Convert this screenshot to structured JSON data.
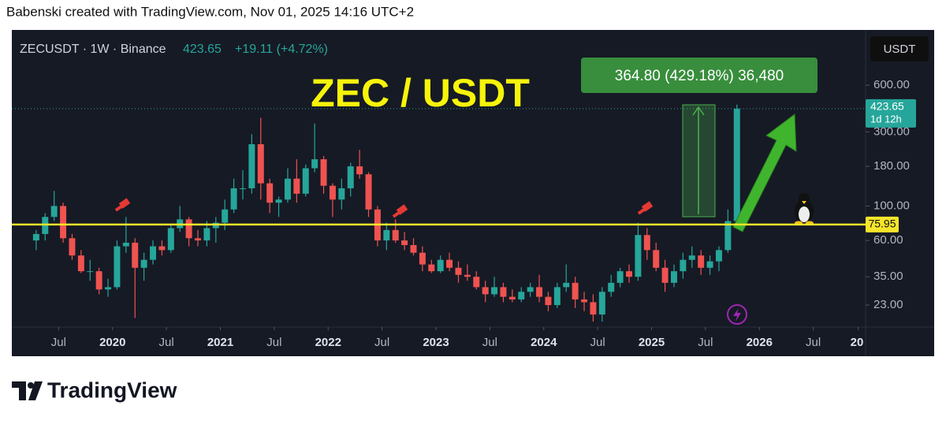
{
  "header": {
    "credit": "Babenski created with TradingView.com, Nov 01, 2025 14:16 UTC+2"
  },
  "footer": {
    "brand": "TradingView"
  },
  "chart_data": {
    "type": "candlestick",
    "title": "ZEC / USDT",
    "legend": {
      "symbol": "ZECUSDT · 1W · Binance",
      "price": "423.65",
      "change": "+19.11 (+4.72%)"
    },
    "currency_button": "USDT",
    "measure_label": "364.80 (429.18%) 36,480",
    "last_price": 423.65,
    "countdown": "1d 12h",
    "hline": 75.95,
    "log_scale": true,
    "grid": false,
    "up_color": "#26a69a",
    "down_color": "#ef5350",
    "hline_color": "#f5e52a",
    "xlim": [
      "2019-01",
      "2027-01"
    ],
    "xticks": [
      {
        "value": "2019-07",
        "label": "Jul"
      },
      {
        "value": "2020-01",
        "label": "2020"
      },
      {
        "value": "2020-07",
        "label": "Jul"
      },
      {
        "value": "2021-01",
        "label": "2021"
      },
      {
        "value": "2021-07",
        "label": "Jul"
      },
      {
        "value": "2022-01",
        "label": "2022"
      },
      {
        "value": "2022-07",
        "label": "Jul"
      },
      {
        "value": "2023-01",
        "label": "2023"
      },
      {
        "value": "2023-07",
        "label": "Jul"
      },
      {
        "value": "2024-01",
        "label": "2024"
      },
      {
        "value": "2024-07",
        "label": "Jul"
      },
      {
        "value": "2025-01",
        "label": "2025"
      },
      {
        "value": "2025-07",
        "label": "Jul"
      },
      {
        "value": "2026-01",
        "label": "2026"
      },
      {
        "value": "2026-07",
        "label": "Jul"
      },
      {
        "value": "2026-12",
        "label": "20"
      }
    ],
    "ylim": [
      16.6,
      1330
    ],
    "yticks": [
      {
        "value": 600,
        "label": "600.00"
      },
      {
        "value": 300,
        "label": "300.00"
      },
      {
        "value": 180,
        "label": "180.00"
      },
      {
        "value": 100,
        "label": "100.00"
      },
      {
        "value": 60,
        "label": "60.00"
      },
      {
        "value": 35,
        "label": "35.00"
      },
      {
        "value": 23,
        "label": "23.00"
      }
    ],
    "x": [
      "2019-04",
      "2019-05",
      "2019-06",
      "2019-07",
      "2019-08",
      "2019-09",
      "2019-10",
      "2019-11",
      "2019-12",
      "2020-01",
      "2020-02",
      "2020-03",
      "2020-04",
      "2020-05",
      "2020-06",
      "2020-07",
      "2020-08",
      "2020-09",
      "2020-10",
      "2020-11",
      "2020-12",
      "2021-01",
      "2021-02",
      "2021-03",
      "2021-04",
      "2021-05",
      "2021-06",
      "2021-07",
      "2021-08",
      "2021-09",
      "2021-10",
      "2021-11",
      "2021-12",
      "2022-01",
      "2022-02",
      "2022-03",
      "2022-04",
      "2022-05",
      "2022-06",
      "2022-07",
      "2022-08",
      "2022-09",
      "2022-10",
      "2022-11",
      "2022-12",
      "2023-01",
      "2023-02",
      "2023-03",
      "2023-04",
      "2023-05",
      "2023-06",
      "2023-07",
      "2023-08",
      "2023-09",
      "2023-10",
      "2023-11",
      "2023-12",
      "2024-01",
      "2024-02",
      "2024-03",
      "2024-04",
      "2024-05",
      "2024-06",
      "2024-07",
      "2024-08",
      "2024-09",
      "2024-10",
      "2024-11",
      "2024-12",
      "2025-01",
      "2025-02",
      "2025-03",
      "2025-04",
      "2025-05",
      "2025-06",
      "2025-07",
      "2025-08",
      "2025-09",
      "2025-10"
    ],
    "open": [
      60,
      66,
      85,
      100,
      62,
      48,
      38,
      38,
      29,
      30,
      55,
      58,
      40,
      45,
      55,
      52,
      72,
      82,
      62,
      60,
      72,
      78,
      95,
      130,
      130,
      250,
      140,
      105,
      110,
      150,
      120,
      175,
      200,
      135,
      110,
      130,
      180,
      160,
      95,
      60,
      70,
      60,
      56,
      50,
      42,
      38,
      45,
      40,
      36,
      35,
      30,
      27,
      30,
      26,
      25,
      28,
      30,
      26,
      23,
      30,
      32,
      25,
      24,
      20,
      28,
      32,
      38,
      35,
      65,
      52,
      40,
      32,
      38,
      45,
      48,
      40,
      44,
      52,
      80
    ],
    "high": [
      70,
      90,
      125,
      105,
      66,
      52,
      45,
      40,
      34,
      60,
      85,
      62,
      50,
      60,
      60,
      75,
      100,
      85,
      70,
      80,
      85,
      110,
      150,
      170,
      290,
      370,
      150,
      115,
      175,
      200,
      185,
      340,
      210,
      140,
      150,
      190,
      230,
      165,
      100,
      78,
      82,
      68,
      62,
      55,
      45,
      48,
      50,
      44,
      42,
      38,
      33,
      35,
      32,
      29,
      30,
      32,
      36,
      28,
      32,
      42,
      35,
      28,
      27,
      30,
      36,
      40,
      42,
      78,
      72,
      58,
      45,
      42,
      50,
      55,
      52,
      48,
      55,
      95,
      450
    ],
    "low": [
      52,
      60,
      80,
      58,
      45,
      37,
      33,
      27,
      26,
      29,
      50,
      19,
      33,
      42,
      48,
      50,
      68,
      55,
      55,
      55,
      58,
      70,
      90,
      110,
      120,
      110,
      90,
      85,
      105,
      105,
      115,
      165,
      120,
      85,
      95,
      115,
      150,
      85,
      55,
      52,
      58,
      52,
      48,
      38,
      37,
      37,
      38,
      32,
      33,
      29,
      24,
      26,
      24,
      24,
      24,
      26,
      24,
      21,
      22,
      28,
      22,
      21,
      18,
      18,
      26,
      30,
      32,
      33,
      45,
      38,
      28,
      30,
      34,
      40,
      36,
      36,
      38,
      50,
      78
    ],
    "close": [
      66,
      85,
      100,
      62,
      48,
      38,
      38,
      29,
      30,
      55,
      58,
      40,
      45,
      55,
      52,
      72,
      82,
      62,
      60,
      72,
      78,
      95,
      130,
      130,
      250,
      140,
      105,
      110,
      150,
      120,
      175,
      200,
      135,
      110,
      130,
      180,
      160,
      95,
      60,
      70,
      60,
      56,
      50,
      42,
      38,
      45,
      40,
      36,
      35,
      30,
      27,
      30,
      26,
      25,
      28,
      30,
      26,
      23,
      30,
      32,
      25,
      24,
      20,
      28,
      32,
      38,
      35,
      65,
      52,
      40,
      32,
      38,
      45,
      48,
      40,
      44,
      52,
      80,
      423.65
    ]
  }
}
